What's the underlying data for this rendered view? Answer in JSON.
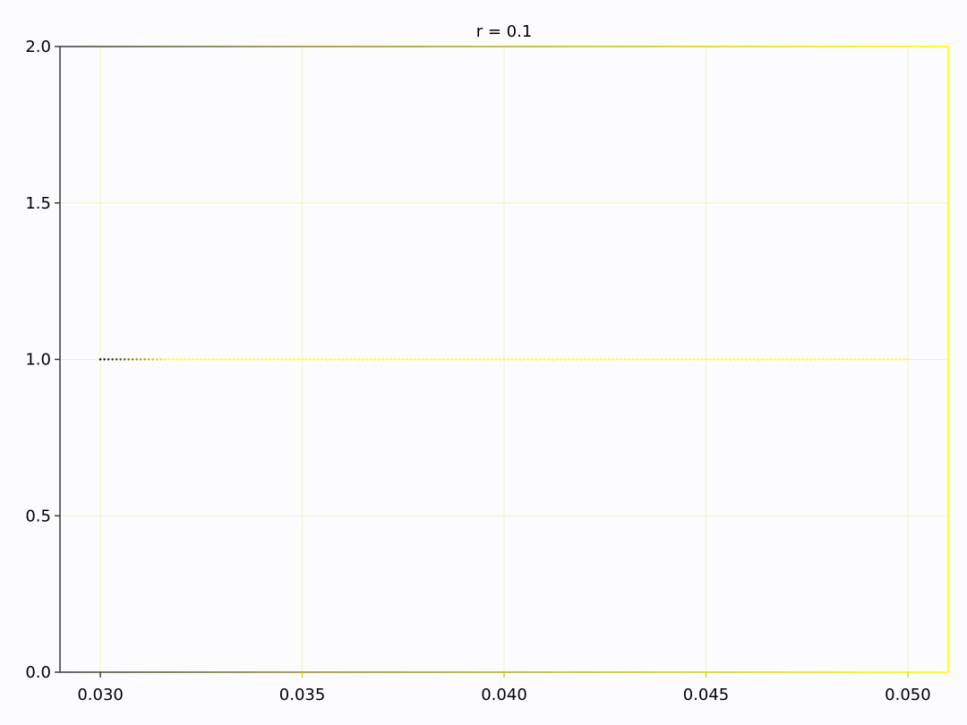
{
  "chart_data": {
    "type": "scatter",
    "title": "r = 0.1",
    "xlabel": "",
    "ylabel": "",
    "xlim": [
      0.029,
      0.051
    ],
    "ylim": [
      0.0,
      2.0
    ],
    "x_ticks": [
      0.03,
      0.035,
      0.04,
      0.045,
      0.05
    ],
    "x_tick_labels": [
      "0.030",
      "0.035",
      "0.040",
      "0.045",
      "0.050"
    ],
    "y_ticks": [
      0.0,
      0.5,
      1.0,
      1.5,
      2.0
    ],
    "y_tick_labels": [
      "0.0",
      "0.5",
      "1.0",
      "1.5",
      "2.0"
    ],
    "grid": true,
    "series": [
      {
        "x_start": 0.03,
        "x_end": 0.05,
        "y": 1.0,
        "points": 201,
        "color_start": "#000000",
        "color_end": "#ffff00"
      }
    ],
    "colors": {
      "grid": "#f2f2c8",
      "axis_left": "#555555",
      "axis_right": "#ffff00"
    }
  }
}
